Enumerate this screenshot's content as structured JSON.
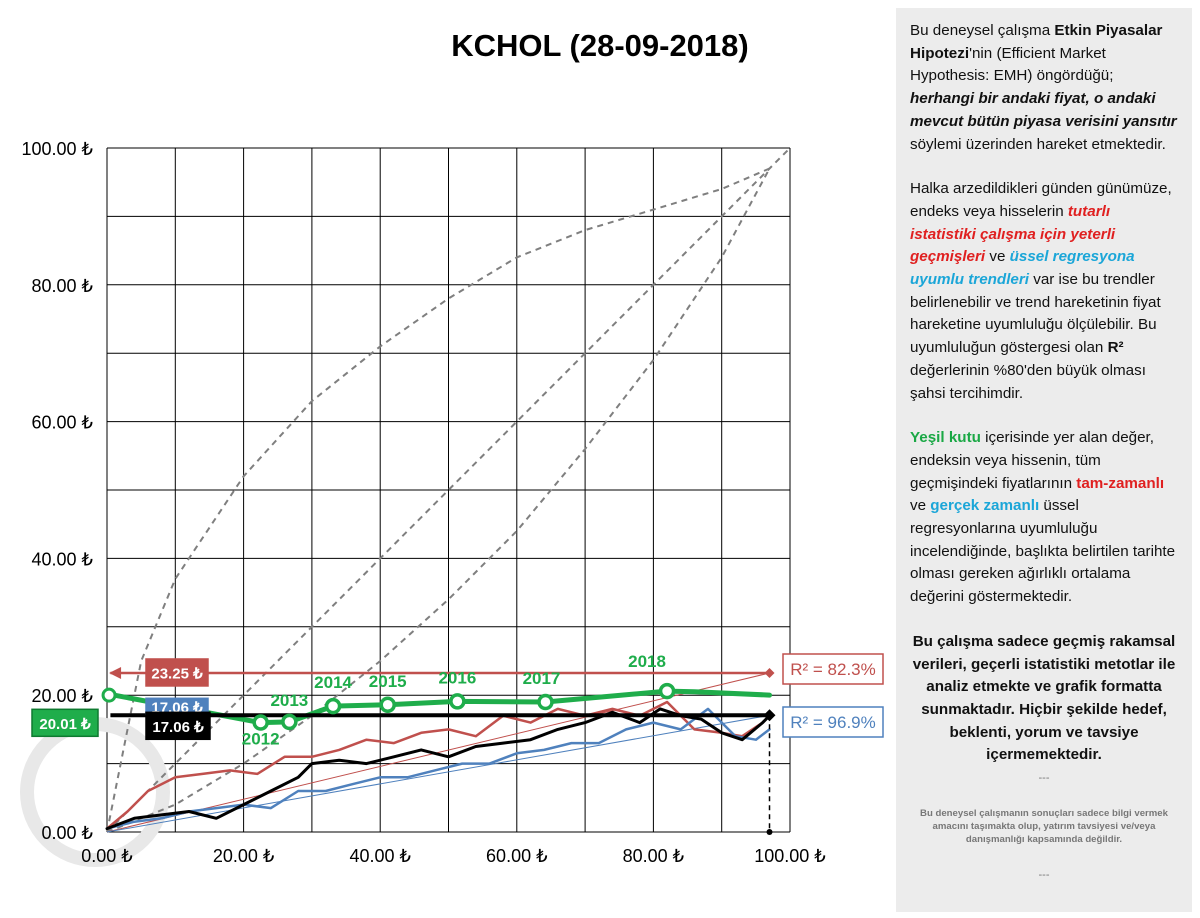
{
  "chart_data": {
    "type": "line",
    "title": "KCHOL (28-09-2018)",
    "xlim": [
      0,
      100
    ],
    "ylim": [
      0,
      100
    ],
    "x_ticks": [
      "0.00 ₺",
      "20.00 ₺",
      "40.00 ₺",
      "60.00 ₺",
      "80.00 ₺",
      "100.00 ₺"
    ],
    "y_ticks": [
      "0.00 ₺",
      "20.00 ₺",
      "40.00 ₺",
      "60.00 ₺",
      "80.00 ₺",
      "100.00 ₺"
    ],
    "grid": true,
    "colors": {
      "red": "#c0504d",
      "blue": "#4f81bd",
      "black": "#000000",
      "green": "#1fad4b",
      "dashed": "#7f7f7f"
    },
    "series": [
      {
        "color": "red",
        "x": [
          0,
          3,
          6,
          10,
          14,
          18,
          22,
          26,
          30,
          34,
          38,
          42,
          46,
          50,
          54,
          58,
          62,
          66,
          70,
          74,
          78,
          82,
          86,
          90,
          93,
          96,
          97
        ],
        "y": [
          0.5,
          3,
          6,
          8,
          8.5,
          9,
          8.5,
          11,
          11,
          12,
          13.5,
          13,
          14.5,
          15,
          14,
          17,
          16,
          18,
          17,
          18,
          17,
          19,
          15,
          14.5,
          14,
          16,
          17
        ]
      },
      {
        "color": "blue",
        "x": [
          0,
          4,
          8,
          12,
          16,
          20,
          24,
          28,
          32,
          36,
          40,
          44,
          48,
          52,
          56,
          60,
          64,
          68,
          72,
          76,
          80,
          84,
          88,
          92,
          95,
          97
        ],
        "y": [
          0.5,
          1.5,
          2,
          3,
          3.5,
          4,
          3.5,
          6,
          6,
          7,
          8,
          8,
          9,
          10,
          10,
          11.5,
          12,
          13,
          13,
          15,
          16,
          15,
          18,
          14,
          13.5,
          15
        ]
      },
      {
        "color": "black",
        "x": [
          0,
          4,
          8,
          12,
          16,
          20,
          24,
          28,
          30,
          34,
          38,
          42,
          46,
          50,
          54,
          58,
          62,
          66,
          70,
          74,
          78,
          81,
          84,
          87,
          90,
          93,
          96,
          97
        ],
        "y": [
          0.5,
          2,
          2.5,
          3,
          2,
          4,
          6,
          8,
          10,
          10.5,
          10,
          11,
          12,
          11,
          12.5,
          13,
          13.5,
          15,
          16,
          17.5,
          16,
          18,
          17,
          16.5,
          14.5,
          13.5,
          16,
          17
        ]
      },
      {
        "color": "green",
        "x": [
          1,
          22.5,
          26.7,
          33.1,
          41.1,
          51.3,
          64.2,
          82.0,
          86,
          97
        ],
        "y": [
          20.01,
          16.0,
          16.1,
          18.4,
          18.6,
          19.1,
          19.0,
          20.6,
          20.5,
          20.01
        ]
      }
    ],
    "trendlines": [
      {
        "color": "red",
        "x": [
          0,
          97
        ],
        "y": [
          0,
          23.25
        ]
      },
      {
        "color": "blue",
        "x": [
          0,
          97
        ],
        "y": [
          0,
          17.06
        ]
      }
    ],
    "envelope": [
      {
        "x": [
          0,
          5,
          10,
          20,
          30,
          40,
          50,
          60,
          70,
          80,
          90,
          97
        ],
        "y": [
          0,
          25,
          37,
          52,
          63,
          71,
          78,
          84,
          88,
          91,
          94,
          97
        ]
      },
      {
        "x": [
          0,
          10,
          20,
          30,
          40,
          50,
          60,
          70,
          80,
          90,
          97
        ],
        "y": [
          0,
          4,
          10,
          17,
          25,
          34,
          44,
          56,
          69,
          84,
          97
        ]
      },
      {
        "x": [
          0,
          100
        ],
        "y": [
          0,
          100
        ]
      }
    ],
    "year_points": [
      {
        "label": "2012",
        "x": 22.5,
        "y": 16.0
      },
      {
        "label": "2013",
        "x": 26.7,
        "y": 16.1
      },
      {
        "label": "2014",
        "x": 33.1,
        "y": 18.4
      },
      {
        "label": "2015",
        "x": 41.1,
        "y": 18.6
      },
      {
        "label": "2016",
        "x": 51.3,
        "y": 19.1
      },
      {
        "label": "2017",
        "x": 64.2,
        "y": 19.0
      },
      {
        "label": "2018",
        "x": 82.0,
        "y": 20.6
      }
    ],
    "annotations": {
      "red_value": "23.25 ₺",
      "blue_value": "17.06 ₺",
      "black_value": "17.06 ₺",
      "green_value": "20.01 ₺",
      "r2_red": "R² = 82.3%",
      "r2_blue": "R² = 96.9%"
    }
  },
  "panel": {
    "p1": {
      "a": "Bu deneysel çalışma ",
      "b": "Etkin Piyasalar Hipotezi",
      "c": "'nin (Efficient Market Hypothesis: EMH) öngördüğü; ",
      "d": "herhangi bir andaki fiyat, o andaki mevcut bütün piyasa verisini yansıtır",
      "e": "  söylemi üzerinden hareket etmektedir."
    },
    "p2": {
      "a": "Halka arzedildikleri günden günümüze, endeks veya hisselerin ",
      "b": "tutarlı istatistiki çalışma için yeterli geçmişleri",
      "c": " ve ",
      "d": "üssel regresyona uyumlu trendleri",
      "e": " var ise bu trendler belirlenebilir ve trend hareketinin fiyat hareketine uyumluluğu ölçülebilir.  Bu uyumluluğun göstergesi olan ",
      "f": "R²",
      "g": " değerlerinin %80'den büyük olması şahsi tercihimdir."
    },
    "p3": {
      "a": "Yeşil kutu",
      "b": " içerisinde yer alan değer, endeksin veya hissenin, tüm geçmişindeki fiyatlarının ",
      "c": "tam-zamanlı",
      "d": " ve ",
      "e": "gerçek zamanlı",
      "f": " üssel regresyonlarına uyumluluğu incelendiğinde, başlıkta belirtilen tarihte olması gereken ağırlıklı ortalama değerini göstermektedir."
    },
    "p4": "Bu çalışma sadece geçmiş rakamsal verileri, geçerli istatistiki metotlar ile  analiz etmekte ve grafik formatta sunmaktadır. Hiçbir şekilde hedef, beklenti, yorum ve tavsiye içermemektedir.",
    "separator": "---",
    "disclaimer": "Bu deneysel çalışmanın sonuçları sadece bilgi vermek amacını taşımakta olup, yatırım tavsiyesi ve/veya danışmanlığı kapsamında değildir."
  }
}
